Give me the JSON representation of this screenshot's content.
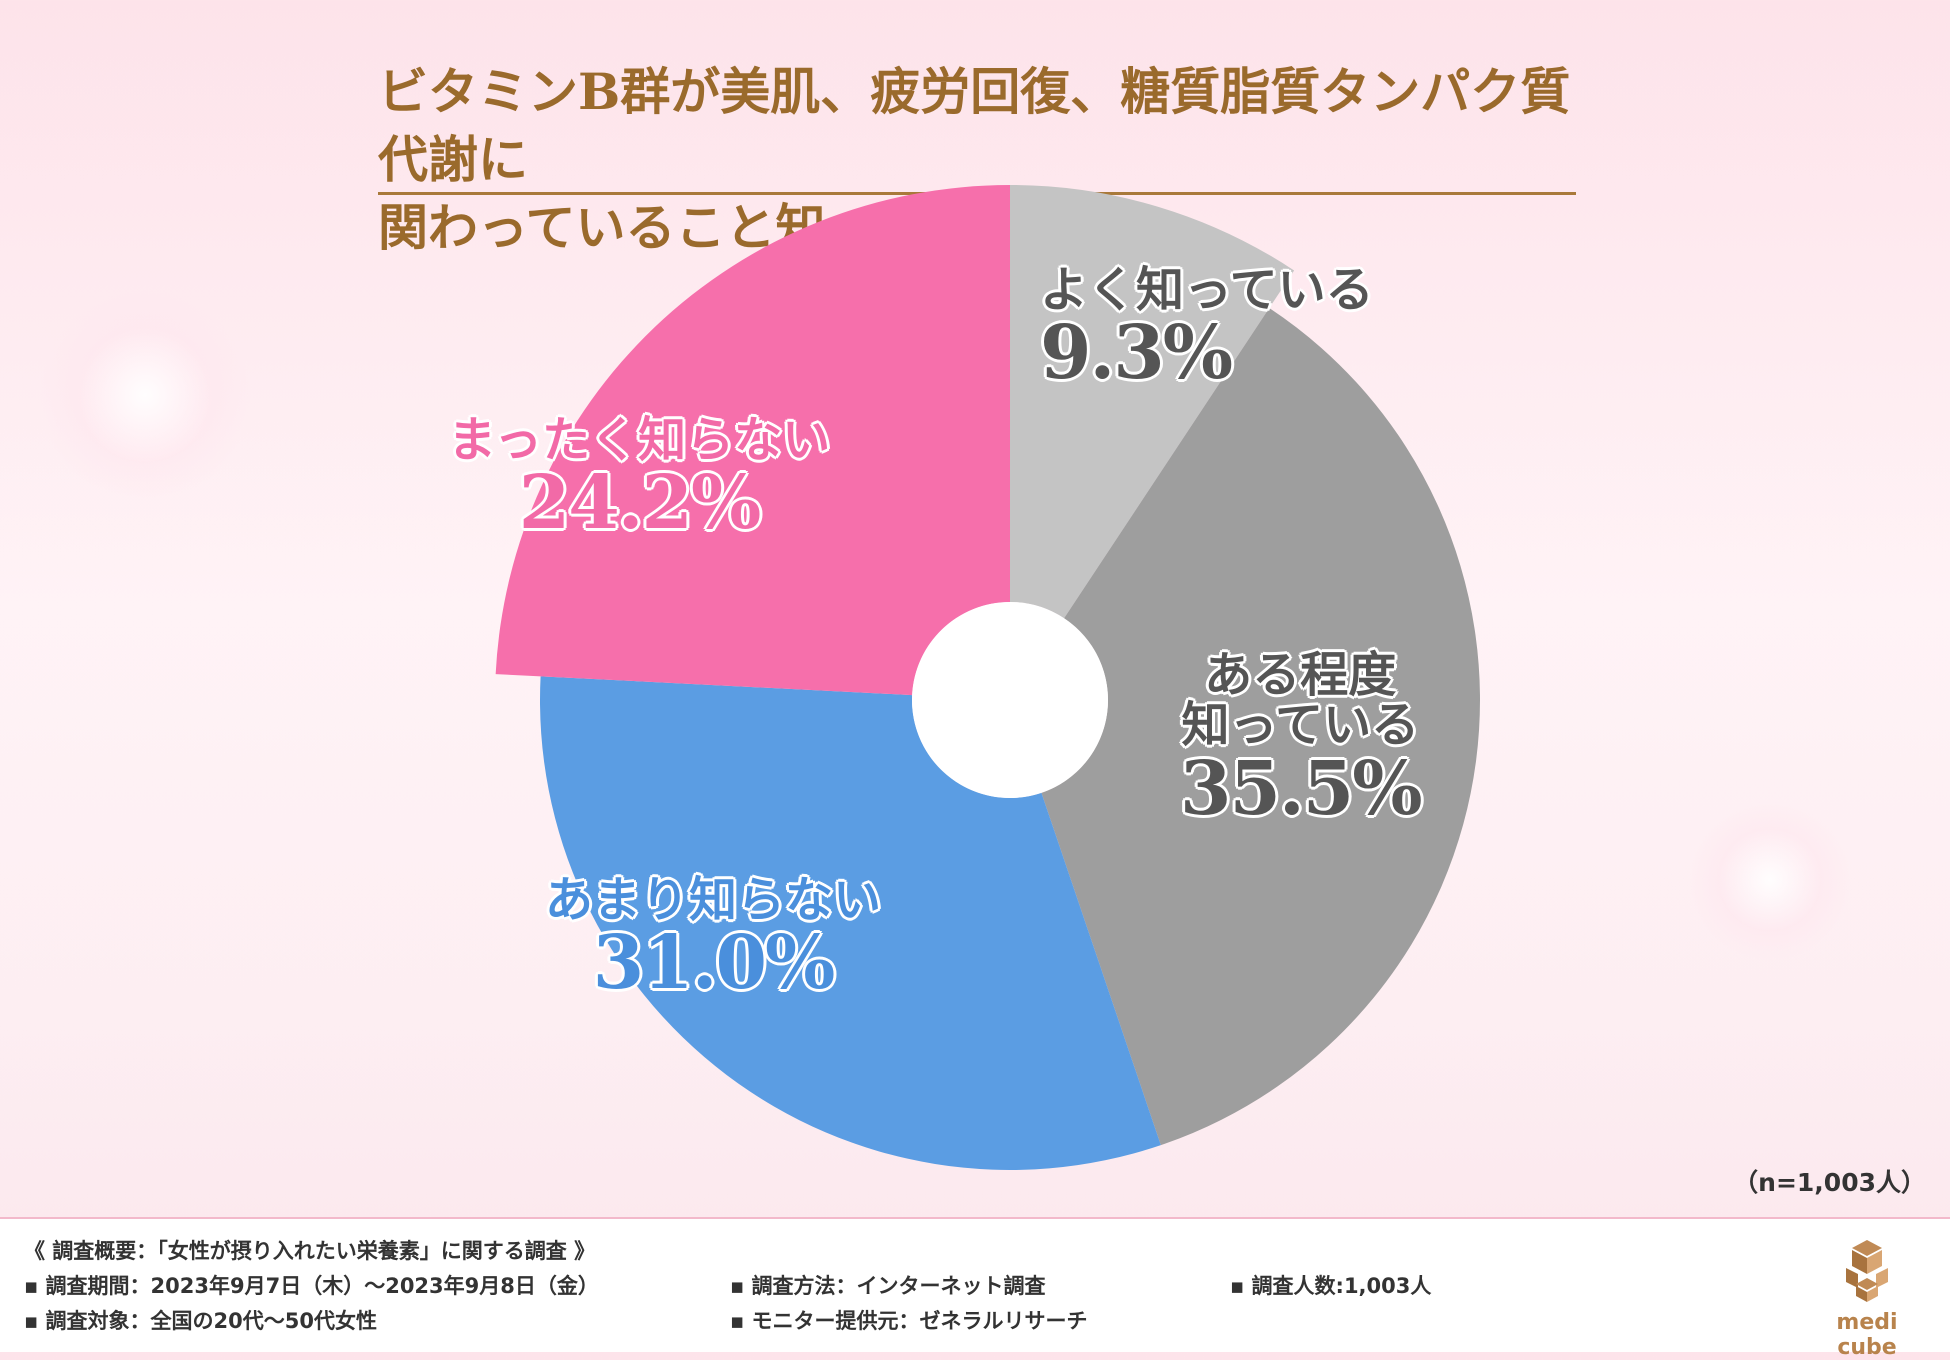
{
  "title_line1": "ビタミンB群が美肌、疲労回復、糖質脂質タンパク質代謝に",
  "title_line2": "関わっていること知っていますか？",
  "n_note": "（n=1,003人）",
  "chart_data": {
    "type": "pie",
    "donut": true,
    "start": "12 o'clock",
    "direction": "clockwise",
    "slices": [
      {
        "label": "よく知っている",
        "label_lines": [
          "よく知っている"
        ],
        "value": 9.3,
        "value_text": "9.3%",
        "color": "#c4c4c4",
        "label_color": "#555555"
      },
      {
        "label": "ある程度知っている",
        "label_lines": [
          "ある程度",
          "知っている"
        ],
        "value": 35.5,
        "value_text": "35.5%",
        "color": "#9e9e9e",
        "label_color": "#555555"
      },
      {
        "label": "あまり知らない",
        "label_lines": [
          "あまり知らない"
        ],
        "value": 31.0,
        "value_text": "31.0%",
        "color": "#5b9de3",
        "label_color": "#4a8fdc"
      },
      {
        "label": "まったく知らない",
        "label_lines": [
          "まったく知らない"
        ],
        "value": 24.2,
        "value_text": "24.2%",
        "color": "#f66fab",
        "label_color": "#f26aa7"
      }
    ]
  },
  "footer": {
    "overview": "《 調査概要：「女性が摂り入れたい栄養素」に関する調査 》",
    "period": "▪ 調査期間：2023年9月7日（木）〜2023年9月8日（金）",
    "method": "▪ 調査方法：インターネット調査",
    "count": "▪ 調査人数:1,003人",
    "target": "▪ 調査対象：全国の20代〜50代女性",
    "provider": "▪ モニター提供元：ゼネラルリサーチ"
  },
  "logo": {
    "text": "medi cube",
    "color": "#b8834c"
  }
}
